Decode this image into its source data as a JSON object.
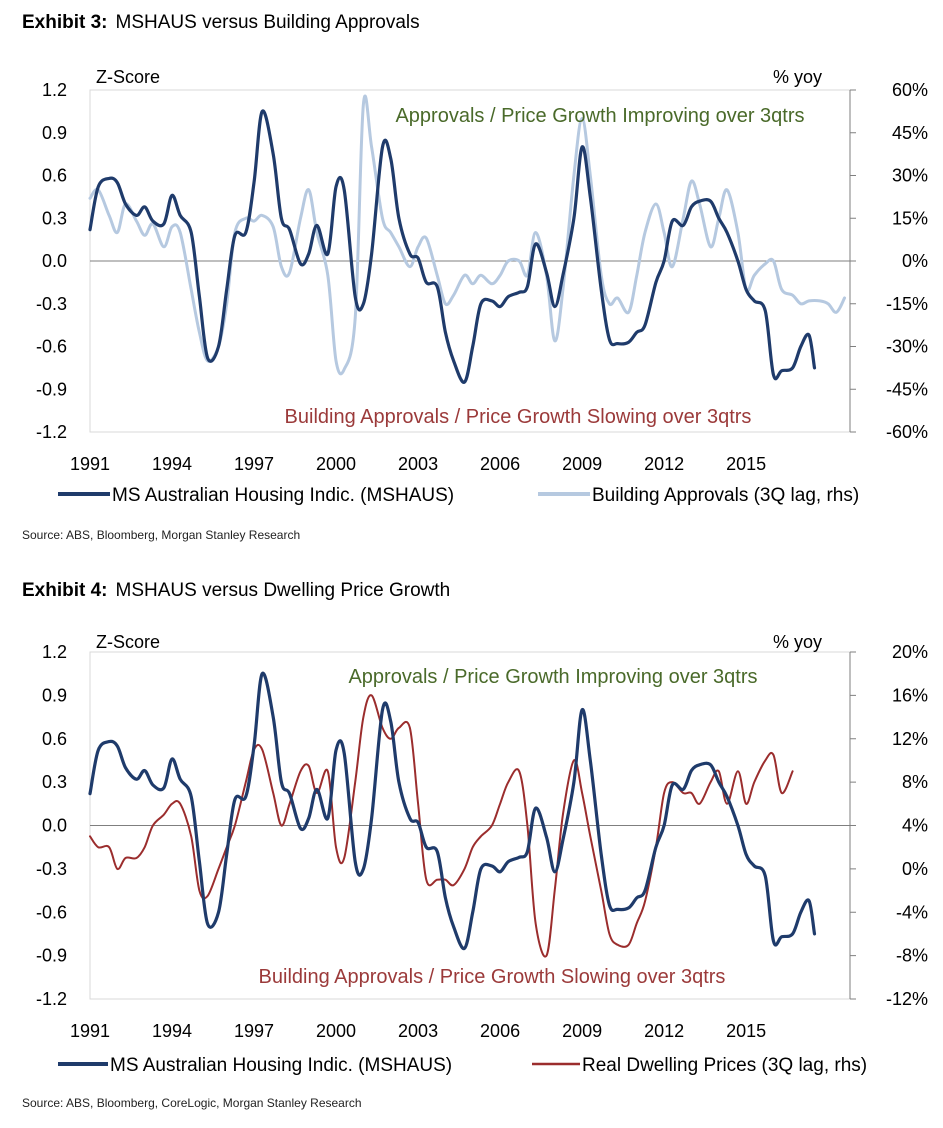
{
  "charts": [
    {
      "exhibit_label": "Exhibit 3:",
      "exhibit_title": "MSHAUS versus Building Approvals",
      "source": "Source: ABS, Bloomberg, Morgan Stanley Research",
      "colors": {
        "series1": "#1f3b6b",
        "series2": "#b6c9e0",
        "annot_top": "#4a6a2a",
        "annot_bottom": "#9b3a3a"
      }
    },
    {
      "exhibit_label": "Exhibit 4:",
      "exhibit_title": "MSHAUS versus Dwelling Price Growth",
      "source": "Source: ABS, Bloomberg, CoreLogic, Morgan Stanley Research",
      "colors": {
        "series1": "#1f3b6b",
        "series2": "#9b2d2d",
        "annot_top": "#4a6a2a",
        "annot_bottom": "#9b3a3a"
      }
    }
  ],
  "chart_data": [
    {
      "type": "line",
      "title": "Exhibit 3: MSHAUS versus Building Approvals",
      "ylabel": "Z-Score",
      "y2label": "% yoy",
      "ylim": [
        -1.2,
        1.2
      ],
      "y2lim": [
        -60,
        60
      ],
      "xlim": [
        1991,
        2018.8
      ],
      "yticks": [
        "1.2",
        "0.9",
        "0.6",
        "0.3",
        "0.0",
        "-0.3",
        "-0.6",
        "-0.9",
        "-1.2"
      ],
      "y2ticks": [
        "60%",
        "45%",
        "30%",
        "15%",
        "0%",
        "-15%",
        "-30%",
        "-45%",
        "-60%"
      ],
      "xticks": [
        "1991",
        "1994",
        "1997",
        "2000",
        "2003",
        "2006",
        "2009",
        "2012",
        "2015"
      ],
      "annotation_top": "Approvals / Price Growth Improving over 3qtrs",
      "annotation_bottom": "Building Approvals / Price Growth Slowing over 3qtrs",
      "series": [
        {
          "name": "MS Australian Housing Indic. (MSHAUS)",
          "axis": "left",
          "x": [
            1991.0,
            1991.3,
            1991.7,
            1992.0,
            1992.3,
            1992.7,
            1993.0,
            1993.3,
            1993.7,
            1994.0,
            1994.3,
            1994.7,
            1995.0,
            1995.3,
            1995.7,
            1996.0,
            1996.3,
            1996.7,
            1997.0,
            1997.3,
            1997.7,
            1998.0,
            1998.3,
            1998.7,
            1999.0,
            1999.3,
            1999.7,
            2000.0,
            2000.3,
            2000.7,
            2001.0,
            2001.3,
            2001.7,
            2002.0,
            2002.3,
            2002.7,
            2003.0,
            2003.3,
            2003.7,
            2004.0,
            2004.3,
            2004.7,
            2005.0,
            2005.3,
            2005.7,
            2006.0,
            2006.3,
            2006.7,
            2007.0,
            2007.3,
            2007.7,
            2008.0,
            2008.3,
            2008.7,
            2009.0,
            2009.3,
            2009.7,
            2010.0,
            2010.3,
            2010.7,
            2011.0,
            2011.3,
            2011.7,
            2012.0,
            2012.3,
            2012.7,
            2013.0,
            2013.3,
            2013.7,
            2014.0,
            2014.3,
            2014.7,
            2015.0,
            2015.3,
            2015.7,
            2016.0,
            2016.3,
            2016.7,
            2017.0,
            2017.3,
            2017.5
          ],
          "values": [
            0.22,
            0.52,
            0.58,
            0.55,
            0.4,
            0.32,
            0.38,
            0.28,
            0.26,
            0.46,
            0.32,
            0.2,
            -0.25,
            -0.68,
            -0.6,
            -0.2,
            0.18,
            0.2,
            0.55,
            1.05,
            0.75,
            0.3,
            0.22,
            -0.02,
            0.05,
            0.25,
            0.05,
            0.52,
            0.5,
            -0.25,
            -0.3,
            0.05,
            0.8,
            0.72,
            0.3,
            0.05,
            0.02,
            -0.15,
            -0.18,
            -0.5,
            -0.7,
            -0.85,
            -0.6,
            -0.3,
            -0.28,
            -0.32,
            -0.25,
            -0.22,
            -0.18,
            0.12,
            -0.08,
            -0.32,
            -0.1,
            0.3,
            0.8,
            0.45,
            -0.2,
            -0.55,
            -0.58,
            -0.57,
            -0.5,
            -0.45,
            -0.15,
            0.0,
            0.28,
            0.25,
            0.38,
            0.42,
            0.42,
            0.3,
            0.2,
            0.0,
            -0.2,
            -0.28,
            -0.35,
            -0.8,
            -0.77,
            -0.75,
            -0.6,
            -0.52,
            -0.75
          ]
        },
        {
          "name": "Building Approvals (3Q lag, rhs)",
          "axis": "right",
          "x": [
            1991.0,
            1991.3,
            1991.7,
            1992.0,
            1992.3,
            1992.7,
            1993.0,
            1993.3,
            1993.7,
            1994.0,
            1994.3,
            1994.7,
            1995.0,
            1995.3,
            1995.7,
            1996.0,
            1996.3,
            1996.7,
            1997.0,
            1997.3,
            1997.7,
            1998.0,
            1998.3,
            1998.7,
            1999.0,
            1999.3,
            1999.7,
            2000.0,
            2000.3,
            2000.7,
            2001.0,
            2001.3,
            2001.7,
            2002.0,
            2002.3,
            2002.7,
            2003.0,
            2003.3,
            2003.7,
            2004.0,
            2004.3,
            2004.7,
            2005.0,
            2005.3,
            2005.7,
            2006.0,
            2006.3,
            2006.7,
            2007.0,
            2007.3,
            2007.7,
            2008.0,
            2008.3,
            2008.7,
            2009.0,
            2009.3,
            2009.7,
            2010.0,
            2010.3,
            2010.7,
            2011.0,
            2011.3,
            2011.7,
            2012.0,
            2012.3,
            2012.7,
            2013.0,
            2013.3,
            2013.7,
            2014.0,
            2014.3,
            2014.7,
            2015.0,
            2015.3,
            2015.7,
            2016.0,
            2016.3,
            2016.7,
            2017.0,
            2017.3,
            2017.7,
            2018.0,
            2018.3,
            2018.6
          ],
          "values": [
            22,
            25,
            16,
            10,
            20,
            14,
            9,
            13,
            5,
            12,
            10,
            -10,
            -25,
            -35,
            -30,
            -15,
            10,
            15,
            14,
            16,
            12,
            -2,
            -4,
            15,
            25,
            10,
            -5,
            -35,
            -38,
            -20,
            55,
            40,
            15,
            10,
            5,
            -2,
            5,
            8,
            -5,
            -15,
            -12,
            -5,
            -8,
            -5,
            -8,
            -5,
            0,
            0,
            -5,
            10,
            -5,
            -28,
            -10,
            30,
            50,
            30,
            -5,
            -15,
            -13,
            -18,
            -5,
            10,
            20,
            10,
            -2,
            15,
            28,
            20,
            5,
            15,
            25,
            10,
            -10,
            -5,
            -1,
            0,
            -10,
            -12,
            -15,
            -14,
            -14,
            -15,
            -18,
            -13
          ]
        }
      ]
    },
    {
      "type": "line",
      "title": "Exhibit 4: MSHAUS versus Dwelling Price Growth",
      "ylabel": "Z-Score",
      "y2label": "% yoy",
      "ylim": [
        -1.2,
        1.2
      ],
      "y2lim": [
        -12,
        20
      ],
      "xlim": [
        1991,
        2018.8
      ],
      "yticks": [
        "1.2",
        "0.9",
        "0.6",
        "0.3",
        "0.0",
        "-0.3",
        "-0.6",
        "-0.9",
        "-1.2"
      ],
      "y2ticks": [
        "20%",
        "16%",
        "12%",
        "8%",
        "4%",
        "0%",
        "-4%",
        "-8%",
        "-12%"
      ],
      "xticks": [
        "1991",
        "1994",
        "1997",
        "2000",
        "2003",
        "2006",
        "2009",
        "2012",
        "2015"
      ],
      "annotation_top": "Approvals / Price Growth Improving over 3qtrs",
      "annotation_bottom": "Building Approvals / Price Growth Slowing over 3qtrs",
      "series": [
        {
          "name": "MS Australian Housing Indic. (MSHAUS)",
          "axis": "left",
          "x": [
            1991.0,
            1991.3,
            1991.7,
            1992.0,
            1992.3,
            1992.7,
            1993.0,
            1993.3,
            1993.7,
            1994.0,
            1994.3,
            1994.7,
            1995.0,
            1995.3,
            1995.7,
            1996.0,
            1996.3,
            1996.7,
            1997.0,
            1997.3,
            1997.7,
            1998.0,
            1998.3,
            1998.7,
            1999.0,
            1999.3,
            1999.7,
            2000.0,
            2000.3,
            2000.7,
            2001.0,
            2001.3,
            2001.7,
            2002.0,
            2002.3,
            2002.7,
            2003.0,
            2003.3,
            2003.7,
            2004.0,
            2004.3,
            2004.7,
            2005.0,
            2005.3,
            2005.7,
            2006.0,
            2006.3,
            2006.7,
            2007.0,
            2007.3,
            2007.7,
            2008.0,
            2008.3,
            2008.7,
            2009.0,
            2009.3,
            2009.7,
            2010.0,
            2010.3,
            2010.7,
            2011.0,
            2011.3,
            2011.7,
            2012.0,
            2012.3,
            2012.7,
            2013.0,
            2013.3,
            2013.7,
            2014.0,
            2014.3,
            2014.7,
            2015.0,
            2015.3,
            2015.7,
            2016.0,
            2016.3,
            2016.7,
            2017.0,
            2017.3,
            2017.5
          ],
          "values": [
            0.22,
            0.52,
            0.58,
            0.55,
            0.4,
            0.32,
            0.38,
            0.28,
            0.26,
            0.46,
            0.32,
            0.2,
            -0.25,
            -0.68,
            -0.6,
            -0.2,
            0.18,
            0.2,
            0.55,
            1.05,
            0.75,
            0.3,
            0.22,
            -0.02,
            0.05,
            0.25,
            0.05,
            0.52,
            0.5,
            -0.25,
            -0.3,
            0.05,
            0.8,
            0.72,
            0.3,
            0.05,
            0.02,
            -0.15,
            -0.18,
            -0.5,
            -0.7,
            -0.85,
            -0.6,
            -0.3,
            -0.28,
            -0.32,
            -0.25,
            -0.22,
            -0.18,
            0.12,
            -0.08,
            -0.32,
            -0.1,
            0.3,
            0.8,
            0.45,
            -0.2,
            -0.55,
            -0.58,
            -0.57,
            -0.5,
            -0.45,
            -0.15,
            0.0,
            0.28,
            0.25,
            0.38,
            0.42,
            0.42,
            0.3,
            0.2,
            0.0,
            -0.2,
            -0.28,
            -0.35,
            -0.8,
            -0.77,
            -0.75,
            -0.6,
            -0.52,
            -0.75
          ]
        },
        {
          "name": "Real Dwelling Prices (3Q lag, rhs)",
          "axis": "right",
          "x": [
            1991.0,
            1991.3,
            1991.7,
            1992.0,
            1992.3,
            1992.7,
            1993.0,
            1993.3,
            1993.7,
            1994.0,
            1994.3,
            1994.7,
            1995.0,
            1995.3,
            1995.7,
            1996.0,
            1996.3,
            1996.7,
            1997.0,
            1997.3,
            1997.7,
            1998.0,
            1998.3,
            1998.7,
            1999.0,
            1999.3,
            1999.7,
            2000.0,
            2000.3,
            2000.7,
            2001.0,
            2001.3,
            2001.7,
            2002.0,
            2002.3,
            2002.7,
            2003.0,
            2003.3,
            2003.7,
            2004.0,
            2004.3,
            2004.7,
            2005.0,
            2005.3,
            2005.7,
            2006.0,
            2006.3,
            2006.7,
            2007.0,
            2007.3,
            2007.7,
            2008.0,
            2008.3,
            2008.7,
            2009.0,
            2009.3,
            2009.7,
            2010.0,
            2010.3,
            2010.7,
            2011.0,
            2011.3,
            2011.7,
            2012.0,
            2012.3,
            2012.7,
            2013.0,
            2013.3,
            2013.7,
            2014.0,
            2014.3,
            2014.7,
            2015.0,
            2015.3,
            2015.7,
            2016.0,
            2016.3,
            2016.7
          ],
          "values": [
            3,
            2,
            2,
            0,
            1,
            1,
            2,
            4,
            5,
            6,
            6,
            3,
            -2,
            -2.5,
            0,
            2,
            4,
            8,
            11,
            11,
            7,
            4,
            6,
            9,
            9.5,
            7,
            9,
            2,
            1,
            8,
            14,
            16,
            13,
            12,
            13,
            13,
            6,
            -1,
            -1,
            -1,
            -1.5,
            0,
            2,
            3,
            4,
            6,
            8,
            9,
            4,
            -5,
            -8,
            -2,
            5,
            10,
            7,
            3,
            -2,
            -6,
            -7,
            -7,
            -5,
            -3,
            2,
            7,
            8,
            7,
            7,
            6,
            8,
            9,
            6,
            9,
            6,
            8,
            10,
            10.5,
            7,
            9
          ]
        }
      ]
    }
  ]
}
